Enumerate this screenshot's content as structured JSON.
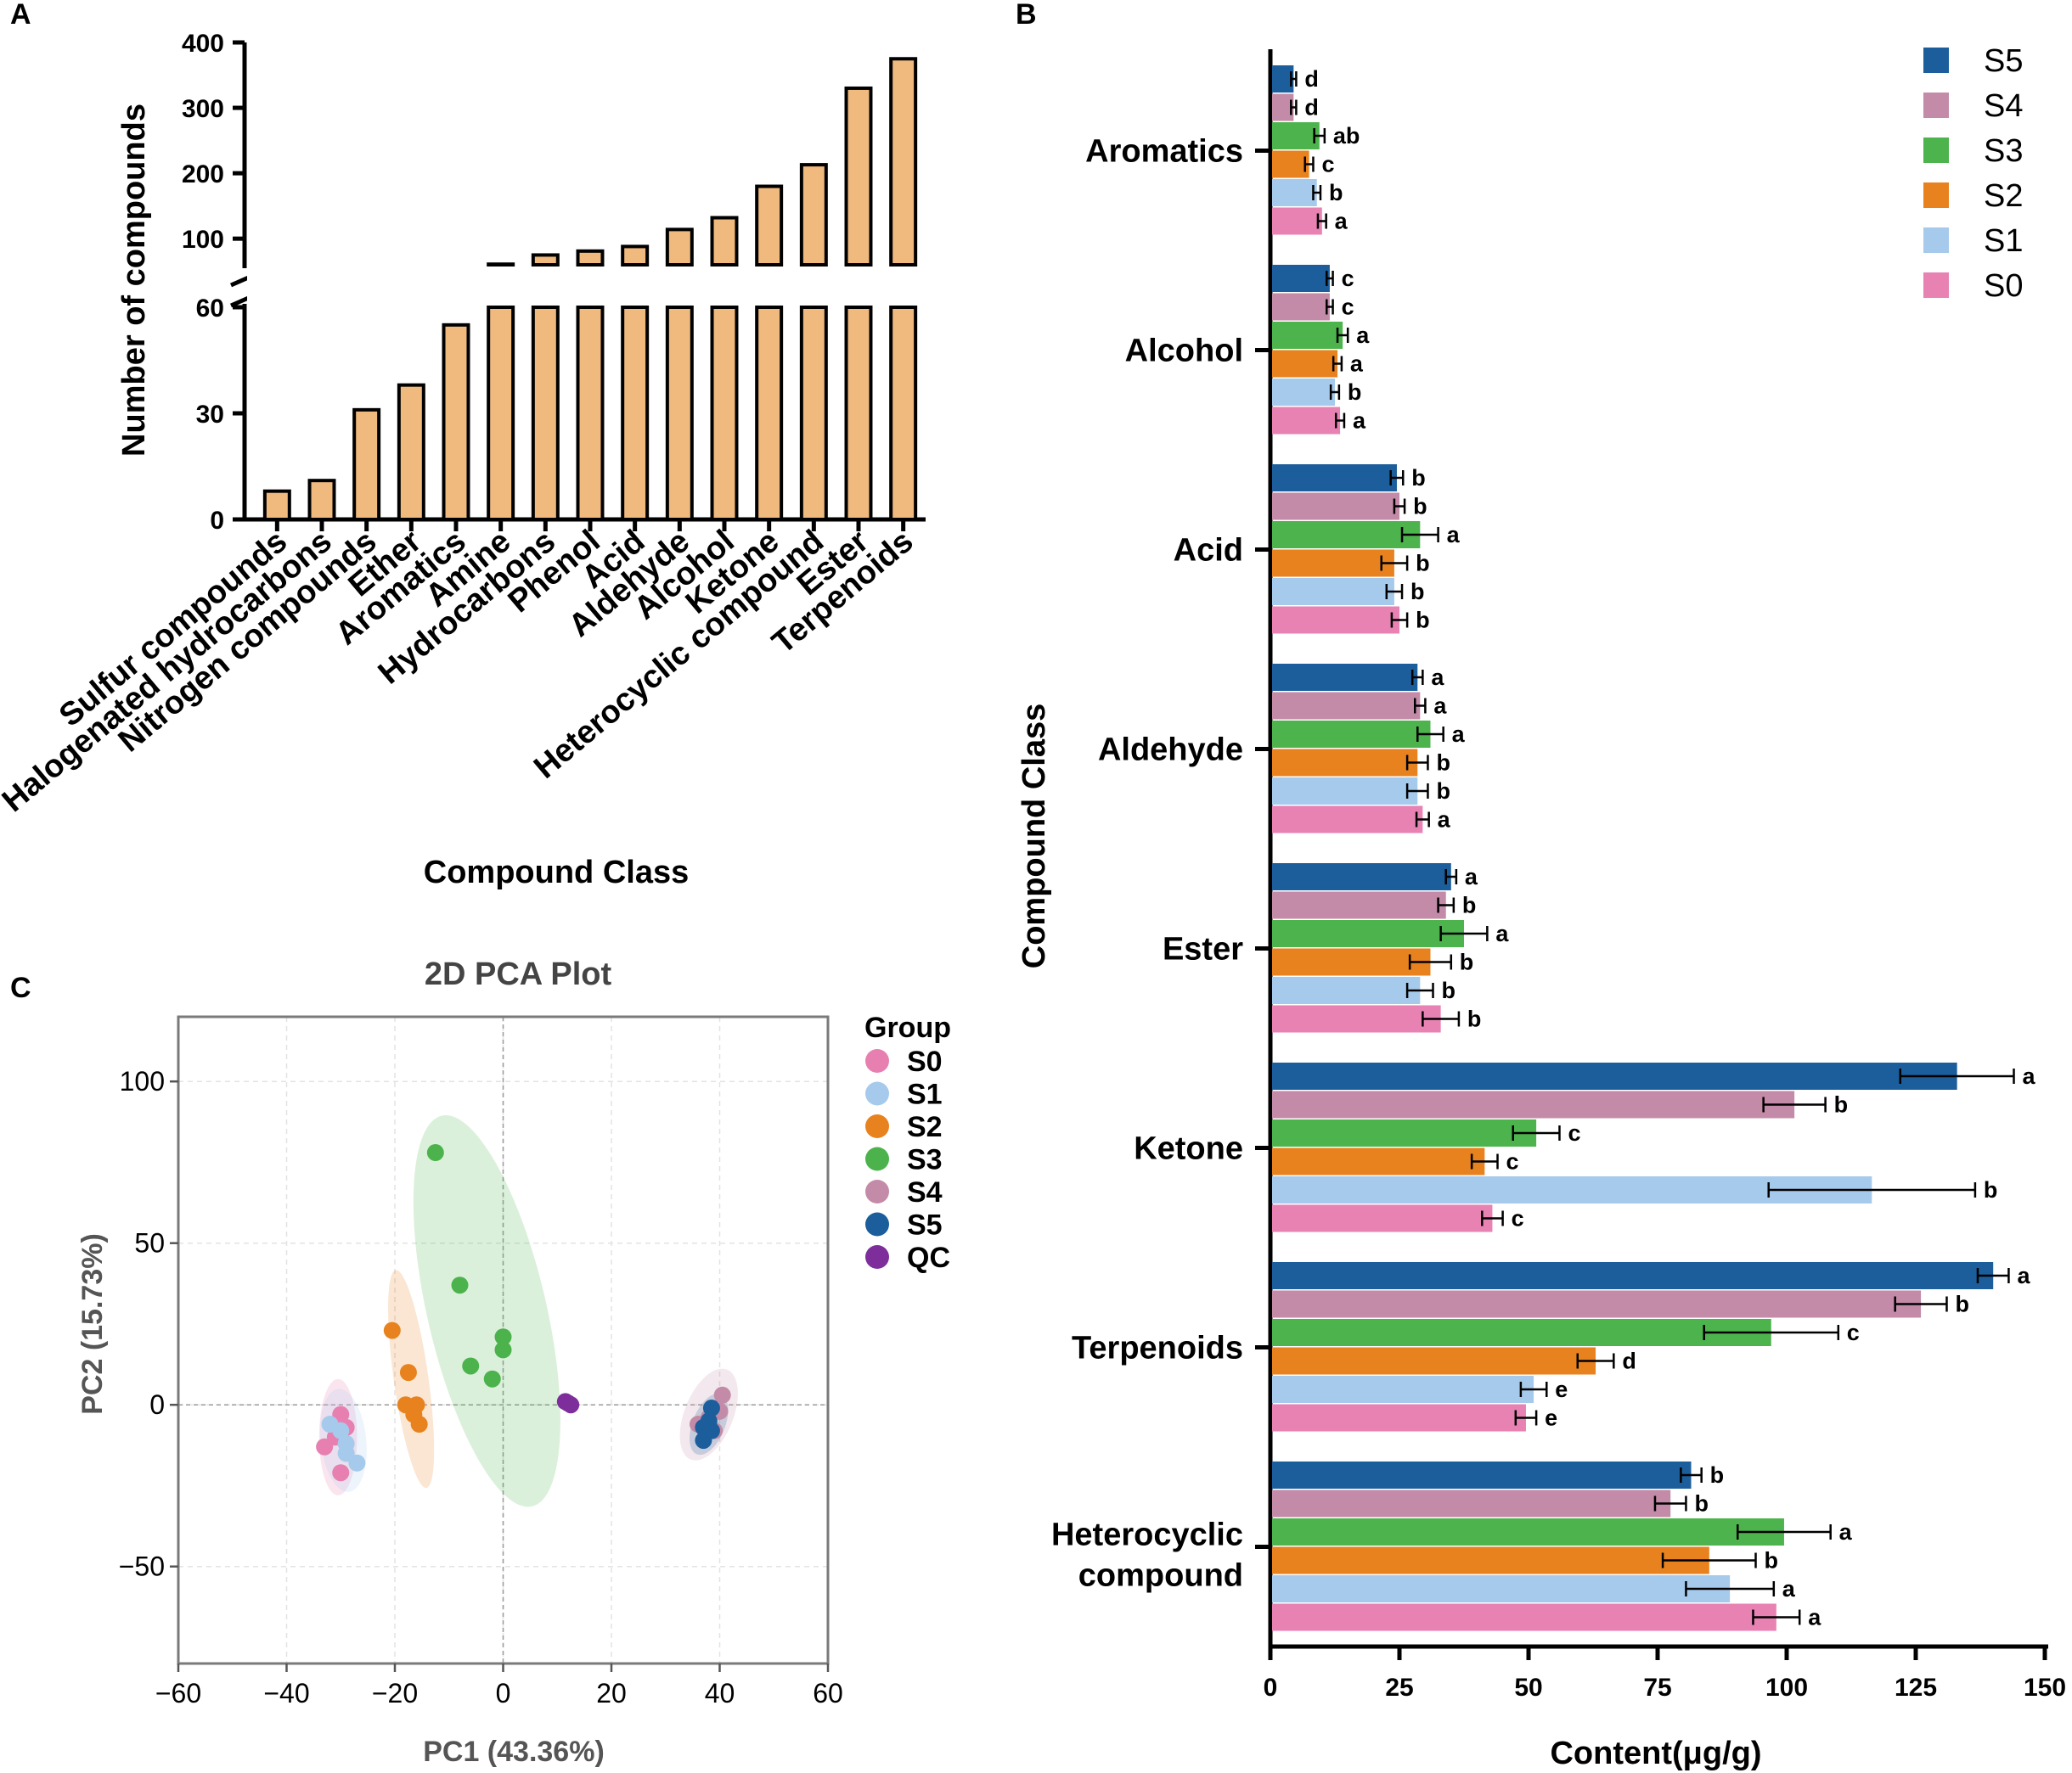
{
  "panel_labels": {
    "a": "A",
    "b": "B",
    "c": "C"
  },
  "chart_data": [
    {
      "id": "A",
      "type": "bar",
      "ylabel": "Number of compounds",
      "xlabel": "Compound Class",
      "broken_axis": true,
      "ylim_lower": [
        0,
        60
      ],
      "ylim_upper": [
        60,
        400
      ],
      "lower_ticks": [
        0,
        30,
        60
      ],
      "upper_ticks": [
        100,
        200,
        300,
        400
      ],
      "bar_color": "#F0B97E",
      "categories": [
        "Sulfur compounds",
        "Halogenated hydrocarbons",
        "Nitrogen compounds",
        "Ether",
        "Aromatics",
        "Amine",
        "Hydrocarbons",
        "Phenol",
        "Acid",
        "Aldehyde",
        "Alcohol",
        "Ketone",
        "Heterocyclic compound",
        "Ester",
        "Terpenoids"
      ],
      "values": [
        8,
        11,
        31,
        38,
        55,
        61,
        75,
        81,
        88,
        114,
        132,
        180,
        213,
        330,
        375
      ]
    },
    {
      "id": "B",
      "type": "bar",
      "orientation": "horizontal",
      "ylabel": "Compound Class",
      "xlabel": "Content(μg/g)",
      "xlim": [
        0,
        150
      ],
      "xticks": [
        0,
        25,
        50,
        75,
        100,
        125,
        150
      ],
      "categories": [
        "Aromatics",
        "Alcohol",
        "Acid",
        "Aldehyde",
        "Ester",
        "Ketone",
        "Terpenoids",
        "Heterocyclic compound"
      ],
      "series": [
        {
          "name": "S5",
          "color": "#1B5E9B",
          "values": [
            4.5,
            11.5,
            24.5,
            28.5,
            35,
            133,
            140,
            81.5
          ],
          "errors": [
            0.5,
            0.6,
            1.2,
            1.0,
            1.0,
            11,
            3,
            2
          ],
          "letters": [
            "d",
            "c",
            "b",
            "a",
            "a",
            "a",
            "a",
            "b"
          ]
        },
        {
          "name": "S4",
          "color": "#C38BA7",
          "values": [
            4.5,
            11.5,
            25,
            29,
            34,
            101.5,
            126,
            77.5
          ],
          "errors": [
            0.5,
            0.6,
            1.0,
            1.0,
            1.5,
            6,
            5,
            3
          ],
          "letters": [
            "d",
            "c",
            "b",
            "a",
            "b",
            "b",
            "b",
            "b"
          ]
        },
        {
          "name": "S3",
          "color": "#4DB34D",
          "values": [
            9.5,
            14,
            29,
            31,
            37.5,
            51.5,
            97,
            99.5
          ],
          "errors": [
            1.0,
            1.0,
            3.5,
            2.5,
            4.5,
            4.5,
            13,
            9
          ],
          "letters": [
            "ab",
            "a",
            "a",
            "a",
            "a",
            "c",
            "c",
            "a"
          ]
        },
        {
          "name": "S2",
          "color": "#E8821E",
          "values": [
            7.5,
            13,
            24,
            28.5,
            31,
            41.5,
            63,
            85
          ],
          "errors": [
            0.8,
            0.8,
            2.5,
            2,
            4,
            2.5,
            3.5,
            9
          ],
          "letters": [
            "c",
            "a",
            "b",
            "b",
            "b",
            "c",
            "d",
            "b"
          ]
        },
        {
          "name": "S1",
          "color": "#A6CAEC",
          "values": [
            9,
            12.5,
            24,
            28.5,
            29,
            116.5,
            51,
            89
          ],
          "errors": [
            0.7,
            0.8,
            1.5,
            2,
            2.5,
            20,
            2.5,
            8.5
          ],
          "letters": [
            "b",
            "b",
            "b",
            "b",
            "b",
            "b",
            "e",
            "a"
          ]
        },
        {
          "name": "S0",
          "color": "#E782B3",
          "values": [
            10,
            13.5,
            25,
            29.5,
            33,
            43,
            49.5,
            98
          ],
          "errors": [
            0.8,
            0.8,
            1.5,
            1.2,
            3.5,
            2,
            2,
            4.5
          ],
          "letters": [
            "a",
            "a",
            "b",
            "a",
            "b",
            "c",
            "e",
            "a"
          ]
        }
      ]
    },
    {
      "id": "C",
      "type": "scatter",
      "title": "2D PCA Plot",
      "xlabel": "PC1 (43.36%)",
      "ylabel": "PC2 (15.73%)",
      "xlim": [
        -60,
        60
      ],
      "ylim": [
        -80,
        120
      ],
      "xticks": [
        -60,
        -40,
        -20,
        0,
        20,
        40,
        60
      ],
      "yticks": [
        -50,
        0,
        50,
        100
      ],
      "legend_title": "Group",
      "series": [
        {
          "name": "S0",
          "color": "#E77FB0",
          "points": [
            [
              -33,
              -13
            ],
            [
              -31,
              -10
            ],
            [
              -30,
              -3
            ],
            [
              -30,
              -21
            ],
            [
              -29,
              -7
            ]
          ],
          "ellipse": {
            "cx": -30.5,
            "cy": -10,
            "rx": 3.5,
            "ry": 18,
            "angle": 0
          }
        },
        {
          "name": "S1",
          "color": "#A6CAEC",
          "points": [
            [
              -32,
              -6
            ],
            [
              -30,
              -8
            ],
            [
              -29,
              -12
            ],
            [
              -29,
              -15
            ],
            [
              -27,
              -18
            ]
          ],
          "ellipse": {
            "cx": -29.5,
            "cy": -11,
            "rx": 4.2,
            "ry": 16,
            "angle": -6
          }
        },
        {
          "name": "S2",
          "color": "#E8821E",
          "points": [
            [
              -20.5,
              23
            ],
            [
              -17.5,
              10
            ],
            [
              -18,
              0
            ],
            [
              -16,
              0
            ],
            [
              -16.5,
              -3
            ],
            [
              -15.5,
              -6
            ]
          ],
          "ellipse": {
            "cx": -17,
            "cy": 8,
            "rx": 3.2,
            "ry": 34,
            "angle": -8
          }
        },
        {
          "name": "S3",
          "color": "#4CB34C",
          "points": [
            [
              -12.5,
              78
            ],
            [
              -8,
              37
            ],
            [
              -6,
              12
            ],
            [
              -2,
              8
            ],
            [
              0,
              21
            ],
            [
              0,
              17
            ]
          ],
          "ellipse": {
            "cx": -3,
            "cy": 29,
            "rx": 11,
            "ry": 62,
            "angle": -13
          }
        },
        {
          "name": "S4",
          "color": "#C38BA7",
          "points": [
            [
              36,
              -6
            ],
            [
              38,
              -4
            ],
            [
              40,
              -2
            ],
            [
              40.5,
              3
            ],
            [
              39,
              -8
            ]
          ],
          "ellipse": {
            "cx": 38,
            "cy": -3,
            "rx": 4.5,
            "ry": 15,
            "angle": 22
          }
        },
        {
          "name": "S5",
          "color": "#1B5E9B",
          "points": [
            [
              37,
              -7
            ],
            [
              38,
              -5
            ],
            [
              38.5,
              -8
            ],
            [
              38.5,
              -1
            ],
            [
              37,
              -11
            ]
          ],
          "ellipse": {
            "cx": 38,
            "cy": -6,
            "rx": 3,
            "ry": 10,
            "angle": 22
          }
        },
        {
          "name": "QC",
          "color": "#7E2E9B",
          "points": [
            [
              11.5,
              1
            ],
            [
              12.5,
              0
            ],
            [
              12,
              0.5
            ]
          ],
          "ellipse": null
        }
      ]
    }
  ]
}
